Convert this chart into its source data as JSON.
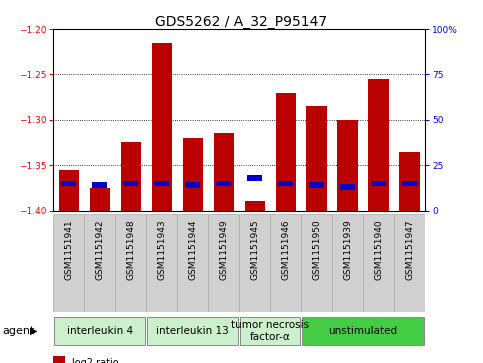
{
  "title": "GDS5262 / A_32_P95147",
  "samples": [
    "GSM1151941",
    "GSM1151942",
    "GSM1151948",
    "GSM1151943",
    "GSM1151944",
    "GSM1151949",
    "GSM1151945",
    "GSM1151946",
    "GSM1151950",
    "GSM1151939",
    "GSM1151940",
    "GSM1151947"
  ],
  "log2_ratio": [
    -1.355,
    -1.375,
    -1.325,
    -1.215,
    -1.32,
    -1.315,
    -1.39,
    -1.27,
    -1.285,
    -1.3,
    -1.255,
    -1.335
  ],
  "percentile_rank": [
    15,
    14,
    15,
    15,
    14,
    15,
    18,
    15,
    14,
    13,
    15,
    15
  ],
  "ymin": -1.4,
  "ymax": -1.2,
  "yticks": [
    -1.4,
    -1.35,
    -1.3,
    -1.25,
    -1.2
  ],
  "right_ytick_positions": [
    0,
    25,
    50,
    75,
    100
  ],
  "right_ytick_labels": [
    "0",
    "25",
    "50",
    "75",
    "100%"
  ],
  "bar_color": "#bb0000",
  "percentile_color": "#0000cc",
  "agent_groups": [
    {
      "label": "interleukin 4",
      "start": 0,
      "end": 3,
      "color": "#ccf0cc"
    },
    {
      "label": "interleukin 13",
      "start": 3,
      "end": 6,
      "color": "#ccf0cc"
    },
    {
      "label": "tumor necrosis\nfactor-α",
      "start": 6,
      "end": 8,
      "color": "#ccf0cc"
    },
    {
      "label": "unstimulated",
      "start": 8,
      "end": 12,
      "color": "#44cc44"
    }
  ],
  "sample_bg_color": "#d0d0d0",
  "plot_bg_color": "#ffffff",
  "title_fontsize": 10,
  "tick_fontsize": 6.5,
  "agent_fontsize": 7.5,
  "legend_fontsize": 7
}
